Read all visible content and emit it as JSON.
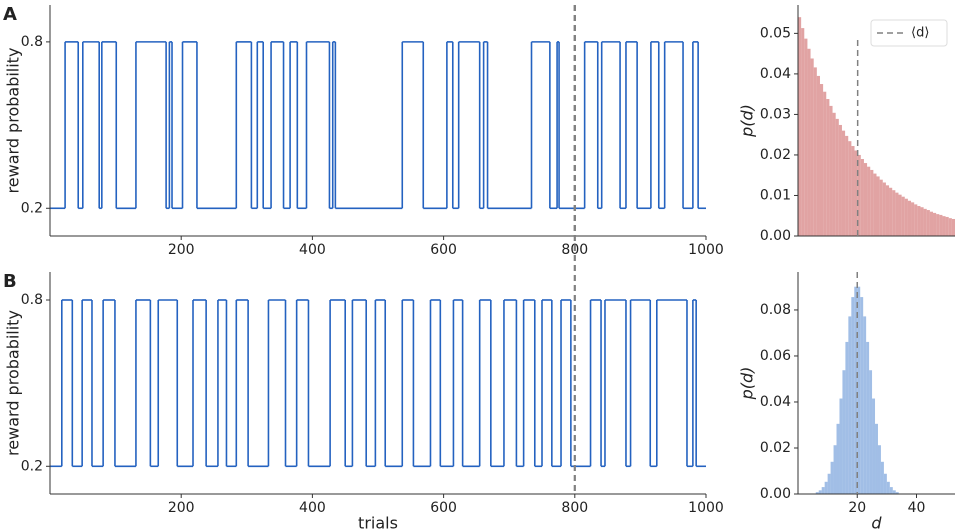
{
  "chart_data": [
    {
      "type": "step",
      "panel_label": "A",
      "ylabel": "reward probability",
      "color": "#2462c0",
      "x": [
        0,
        23,
        43,
        50,
        75,
        79,
        101,
        131,
        177,
        182,
        186,
        202,
        224,
        284,
        307,
        316,
        325,
        337,
        356,
        366,
        377,
        391,
        426,
        431,
        435,
        537,
        569,
        605,
        614,
        623,
        655,
        661,
        667,
        734,
        762,
        773,
        776,
        815,
        835,
        841,
        869,
        878,
        895,
        916,
        928,
        937,
        965,
        980,
        988
      ],
      "values": [
        0.2,
        0.8,
        0.2,
        0.8,
        0.2,
        0.8,
        0.2,
        0.8,
        0.2,
        0.8,
        0.2,
        0.8,
        0.2,
        0.8,
        0.2,
        0.8,
        0.2,
        0.8,
        0.2,
        0.8,
        0.2,
        0.8,
        0.2,
        0.8,
        0.2,
        0.8,
        0.2,
        0.8,
        0.2,
        0.8,
        0.2,
        0.8,
        0.2,
        0.8,
        0.2,
        0.8,
        0.2,
        0.8,
        0.2,
        0.8,
        0.2,
        0.8,
        0.2,
        0.8,
        0.2,
        0.8,
        0.2,
        0.8,
        0.2
      ],
      "xlim": [
        0,
        1000
      ],
      "ylim": [
        0.1,
        0.933
      ],
      "xticks": [
        200,
        400,
        600,
        800,
        1000
      ],
      "yticks": [
        0.2,
        0.8
      ],
      "vline": 800
    },
    {
      "type": "histogram",
      "ylabel": "p(d)",
      "color": "#d98c8c",
      "legend": "⟨d⟩",
      "legend_position": "upper right",
      "bins": [
        1,
        2,
        3,
        4,
        5,
        6,
        7,
        8,
        9,
        10,
        11,
        12,
        13,
        14,
        15,
        16,
        17,
        18,
        19,
        20,
        21,
        22,
        23,
        24,
        25,
        26,
        27,
        28,
        29,
        30,
        31,
        32,
        33,
        34,
        35,
        36,
        37,
        38,
        39,
        40,
        41,
        42,
        43,
        44,
        45,
        46,
        47,
        48,
        49,
        50,
        51
      ],
      "values": [
        0.054,
        0.0513,
        0.0487,
        0.0462,
        0.0438,
        0.0416,
        0.0395,
        0.0375,
        0.0356,
        0.0338,
        0.0321,
        0.0304,
        0.0289,
        0.0274,
        0.026,
        0.0247,
        0.0234,
        0.0222,
        0.0211,
        0.02,
        0.019,
        0.018,
        0.0171,
        0.0163,
        0.0154,
        0.0147,
        0.0139,
        0.0132,
        0.0125,
        0.0119,
        0.0113,
        0.0107,
        0.0102,
        0.0097,
        0.0092,
        0.0087,
        0.0083,
        0.0078,
        0.0074,
        0.0071,
        0.0067,
        0.0064,
        0.006,
        0.0057,
        0.0054,
        0.0052,
        0.0049,
        0.0047,
        0.0044,
        0.0042
      ],
      "xlim": [
        1,
        51
      ],
      "ylim": [
        0,
        0.057
      ],
      "yticks": [
        {
          "value": 0,
          "label": "0.00"
        },
        {
          "value": 0.01,
          "label": "0.01"
        },
        {
          "value": 0.02,
          "label": "0.02"
        },
        {
          "value": 0.03,
          "label": "0.03"
        },
        {
          "value": 0.04,
          "label": "0.04"
        },
        {
          "value": 0.05,
          "label": "0.05"
        }
      ],
      "vline": 20
    },
    {
      "type": "step",
      "panel_label": "B",
      "ylabel": "reward probability",
      "xlabel": "trials",
      "color": "#2462c0",
      "x": [
        0,
        18,
        34,
        49,
        64,
        81,
        99,
        131,
        153,
        165,
        194,
        218,
        238,
        256,
        269,
        284,
        302,
        333,
        359,
        376,
        394,
        427,
        450,
        461,
        482,
        496,
        511,
        537,
        554,
        580,
        595,
        615,
        629,
        655,
        672,
        692,
        711,
        722,
        739,
        750,
        765,
        779,
        794,
        824,
        840,
        846,
        878,
        885,
        915,
        925,
        971,
        980,
        985
      ],
      "values": [
        0.2,
        0.8,
        0.2,
        0.8,
        0.2,
        0.8,
        0.2,
        0.8,
        0.2,
        0.8,
        0.2,
        0.8,
        0.2,
        0.8,
        0.2,
        0.8,
        0.2,
        0.8,
        0.2,
        0.8,
        0.2,
        0.8,
        0.2,
        0.8,
        0.2,
        0.8,
        0.2,
        0.8,
        0.2,
        0.8,
        0.2,
        0.8,
        0.2,
        0.8,
        0.2,
        0.8,
        0.2,
        0.8,
        0.2,
        0.8,
        0.2,
        0.8,
        0.2,
        0.8,
        0.2,
        0.8,
        0.2,
        0.8,
        0.2,
        0.8,
        0.2,
        0.8,
        0.2
      ],
      "xlim": [
        0,
        1000
      ],
      "ylim": [
        0.1,
        0.901
      ],
      "xticks": [
        200,
        400,
        600,
        800,
        1000
      ],
      "yticks": [
        0.2,
        0.8
      ],
      "vline": 800
    },
    {
      "type": "histogram",
      "ylabel": "p(d)",
      "xlabel": "d",
      "color": "#8aaee0",
      "bins": [
        6,
        7,
        8,
        9,
        10,
        11,
        12,
        13,
        14,
        15,
        16,
        17,
        18,
        19,
        20,
        21,
        22,
        23,
        24,
        25,
        26,
        27,
        28,
        29,
        30,
        31,
        32,
        33,
        34
      ],
      "values": [
        0.0008,
        0.0016,
        0.003,
        0.0053,
        0.0088,
        0.014,
        0.0212,
        0.0305,
        0.0415,
        0.0538,
        0.0661,
        0.0772,
        0.0856,
        0.0901,
        0.0901,
        0.0856,
        0.0772,
        0.0661,
        0.0538,
        0.0415,
        0.0305,
        0.0212,
        0.014,
        0.0088,
        0.0053,
        0.003,
        0.0016,
        0.0008
      ],
      "xlim": [
        0,
        53
      ],
      "ylim": [
        0,
        0.0965
      ],
      "xticks": [
        20,
        40
      ],
      "yticks": [
        {
          "value": 0,
          "label": "0.00"
        },
        {
          "value": 0.02,
          "label": "0.02"
        },
        {
          "value": 0.04,
          "label": "0.04"
        },
        {
          "value": 0.06,
          "label": "0.06"
        },
        {
          "value": 0.08,
          "label": "0.08"
        }
      ],
      "vline": 20
    }
  ]
}
